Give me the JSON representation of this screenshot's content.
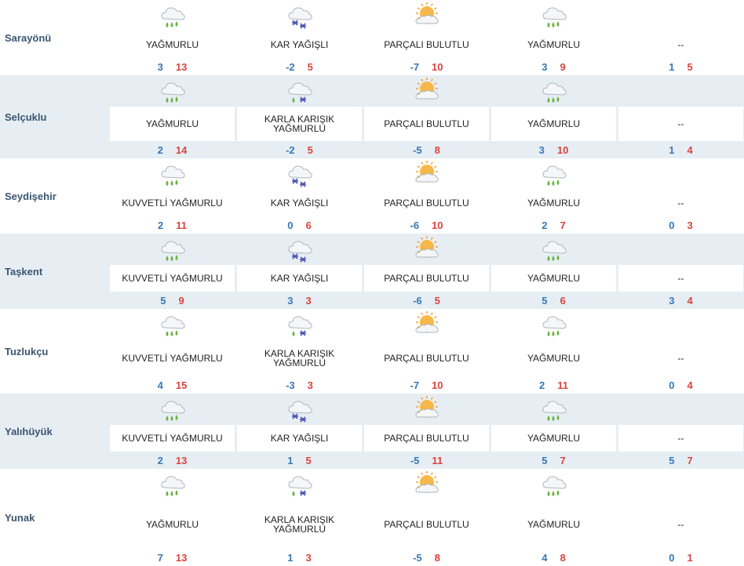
{
  "icon_names": {
    "rain": "rain-cloud-icon",
    "snow": "snow-cloud-icon",
    "sleet": "sleet-cloud-icon",
    "partly": "partly-cloudy-icon"
  },
  "colors": {
    "low_temp": "#3778b5",
    "high_temp": "#d9443e",
    "row_shade": "#e6eef4"
  },
  "cities": [
    {
      "name": "Sarayönü",
      "days": [
        {
          "icon": "rain",
          "desc": "YAĞMURLU",
          "lo": "3",
          "hi": "13"
        },
        {
          "icon": "snow",
          "desc": "KAR YAĞIŞLI",
          "lo": "-2",
          "hi": "5"
        },
        {
          "icon": "partly",
          "desc": "PARÇALI BULUTLU",
          "lo": "-7",
          "hi": "10"
        },
        {
          "icon": "rain",
          "desc": "YAĞMURLU",
          "lo": "3",
          "hi": "9"
        },
        {
          "icon": "",
          "desc": "--",
          "lo": "1",
          "hi": "5"
        }
      ]
    },
    {
      "name": "Selçuklu",
      "days": [
        {
          "icon": "rain",
          "desc": "YAĞMURLU",
          "lo": "2",
          "hi": "14"
        },
        {
          "icon": "sleet",
          "desc": "KARLA KARIŞIK YAĞMURLU",
          "lo": "-2",
          "hi": "5"
        },
        {
          "icon": "partly",
          "desc": "PARÇALI BULUTLU",
          "lo": "-5",
          "hi": "8"
        },
        {
          "icon": "rain",
          "desc": "YAĞMURLU",
          "lo": "3",
          "hi": "10"
        },
        {
          "icon": "",
          "desc": "--",
          "lo": "1",
          "hi": "4"
        }
      ]
    },
    {
      "name": "Seydişehir",
      "days": [
        {
          "icon": "rain",
          "desc": "KUVVETLİ YAĞMURLU",
          "lo": "2",
          "hi": "11"
        },
        {
          "icon": "snow",
          "desc": "KAR YAĞIŞLI",
          "lo": "0",
          "hi": "6"
        },
        {
          "icon": "partly",
          "desc": "PARÇALI BULUTLU",
          "lo": "-6",
          "hi": "10"
        },
        {
          "icon": "rain",
          "desc": "YAĞMURLU",
          "lo": "2",
          "hi": "7"
        },
        {
          "icon": "",
          "desc": "--",
          "lo": "0",
          "hi": "3"
        }
      ]
    },
    {
      "name": "Taşkent",
      "days": [
        {
          "icon": "rain",
          "desc": "KUVVETLİ YAĞMURLU",
          "lo": "5",
          "hi": "9"
        },
        {
          "icon": "snow",
          "desc": "KAR YAĞIŞLI",
          "lo": "3",
          "hi": "3"
        },
        {
          "icon": "partly",
          "desc": "PARÇALI BULUTLU",
          "lo": "-6",
          "hi": "5"
        },
        {
          "icon": "rain",
          "desc": "YAĞMURLU",
          "lo": "5",
          "hi": "6"
        },
        {
          "icon": "",
          "desc": "--",
          "lo": "3",
          "hi": "4"
        }
      ]
    },
    {
      "name": "Tuzlukçu",
      "days": [
        {
          "icon": "rain",
          "desc": "KUVVETLİ YAĞMURLU",
          "lo": "4",
          "hi": "15"
        },
        {
          "icon": "sleet",
          "desc": "KARLA KARIŞIK YAĞMURLU",
          "lo": "-3",
          "hi": "3"
        },
        {
          "icon": "partly",
          "desc": "PARÇALI BULUTLU",
          "lo": "-7",
          "hi": "10"
        },
        {
          "icon": "rain",
          "desc": "YAĞMURLU",
          "lo": "2",
          "hi": "11"
        },
        {
          "icon": "",
          "desc": "--",
          "lo": "0",
          "hi": "4"
        }
      ]
    },
    {
      "name": "Yalıhüyük",
      "days": [
        {
          "icon": "rain",
          "desc": "KUVVETLİ YAĞMURLU",
          "lo": "2",
          "hi": "13"
        },
        {
          "icon": "snow",
          "desc": "KAR YAĞIŞLI",
          "lo": "1",
          "hi": "5"
        },
        {
          "icon": "partly",
          "desc": "PARÇALI BULUTLU",
          "lo": "-5",
          "hi": "11"
        },
        {
          "icon": "rain",
          "desc": "YAĞMURLU",
          "lo": "5",
          "hi": "7"
        },
        {
          "icon": "",
          "desc": "--",
          "lo": "5",
          "hi": "7"
        }
      ]
    },
    {
      "name": "Yunak",
      "days": [
        {
          "icon": "rain",
          "desc": "YAĞMURLU",
          "lo": "7",
          "hi": "13"
        },
        {
          "icon": "sleet",
          "desc": "KARLA KARIŞIK YAĞMURLU",
          "lo": "1",
          "hi": "3"
        },
        {
          "icon": "partly",
          "desc": "PARÇALI BULUTLU",
          "lo": "-5",
          "hi": "8"
        },
        {
          "icon": "rain",
          "desc": "YAĞMURLU",
          "lo": "4",
          "hi": "8"
        },
        {
          "icon": "",
          "desc": "--",
          "lo": "0",
          "hi": "1"
        }
      ]
    }
  ]
}
